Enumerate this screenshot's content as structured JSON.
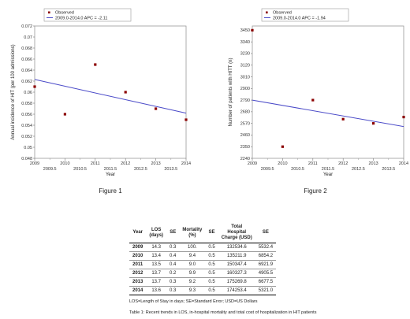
{
  "chart_data": [
    {
      "type": "scatter",
      "id": "fig1",
      "ylabel": "Annual incidence of HIT (per 100 admissions)",
      "xlabel": "Year",
      "x_ticks": [
        "2009",
        "2010",
        "2011",
        "2012",
        "2013",
        "2014"
      ],
      "x_minor_ticks": [
        "2009.5",
        "2010.5",
        "2011.5",
        "2012.5",
        "2013.5"
      ],
      "y_ticks": [
        "0.048",
        "0.05",
        "0.052",
        "0.054",
        "0.056",
        "0.058",
        "0.06",
        "0.062",
        "0.064",
        "0.066",
        "0.068",
        "0.07",
        "0.072"
      ],
      "xlim": [
        2009,
        2014
      ],
      "ylim": [
        0.048,
        0.072
      ],
      "series": [
        {
          "name": "Observed",
          "x": [
            2009,
            2010,
            2011,
            2012,
            2013,
            2014
          ],
          "y": [
            0.061,
            0.056,
            0.065,
            0.06,
            0.057,
            0.055
          ],
          "color": "#8b0000"
        },
        {
          "name": "2009.0-2014.0 APC = -2.11",
          "kind": "line",
          "x": [
            2009,
            2014
          ],
          "y": [
            0.0623,
            0.0562
          ],
          "color": "#4a4ac8"
        }
      ]
    },
    {
      "type": "scatter",
      "id": "fig2",
      "ylabel": "Number of patients with HITT (n)",
      "xlabel": "Year",
      "x_ticks": [
        "2009",
        "2010",
        "2011",
        "2012",
        "2013",
        "2014"
      ],
      "x_minor_ticks": [
        "2009.5",
        "2010.5",
        "2011.5",
        "2012.5",
        "2013.5"
      ],
      "y_ticks": [
        "2240",
        "2350",
        "2460",
        "2570",
        "2680",
        "2790",
        "2900",
        "3010",
        "3120",
        "3230",
        "3340",
        "3450"
      ],
      "xlim": [
        2009,
        2014
      ],
      "ylim": [
        2240,
        3490
      ],
      "series": [
        {
          "name": "Observed",
          "x": [
            2009,
            2010,
            2011,
            2012,
            2013,
            2014
          ],
          "y": [
            3450,
            2350,
            2790,
            2610,
            2570,
            2630
          ],
          "color": "#8b0000"
        },
        {
          "name": "2009.0-2014.0 APC = -1.94",
          "kind": "line",
          "x": [
            2009,
            2014
          ],
          "y": [
            2790,
            2540
          ],
          "color": "#4a4ac8"
        }
      ]
    }
  ],
  "captions": {
    "fig1": "Figure 1",
    "fig2": "Figure 2"
  },
  "table": {
    "headers": [
      "Year",
      "LOS\n(days)",
      "SE",
      "Mortality\n(%)",
      "SE",
      "Total\nHospital\nCharge (USD)",
      "SE"
    ],
    "rows": [
      [
        "2009",
        "14.3",
        "0.3",
        "100.",
        "0.5",
        "132534.6",
        "5532.4"
      ],
      [
        "2010",
        "13.4",
        "0.4",
        "9.4",
        "0.5",
        "135211.9",
        "6854.2"
      ],
      [
        "2011",
        "13.5",
        "0.4",
        "9.0",
        "0.5",
        "150347.4",
        "6921.9"
      ],
      [
        "2012",
        "13.7",
        "0.2",
        "9.9",
        "0.5",
        "160327.3",
        "4905.5"
      ],
      [
        "2013",
        "13.7",
        "0.3",
        "9.2",
        "0.5",
        "175269.8",
        "6677.5"
      ],
      [
        "2014",
        "13.6",
        "0.3",
        "9.3",
        "0.5",
        "174253.4",
        "5321.0"
      ]
    ],
    "footnote": "LOS=Length of Stay in days; SE=Standard Error; USD=US Dollars",
    "caption": "Table 1: Recent trends in LOS, in-hospital mortality and total cost of hospitalization in HIT patients"
  }
}
